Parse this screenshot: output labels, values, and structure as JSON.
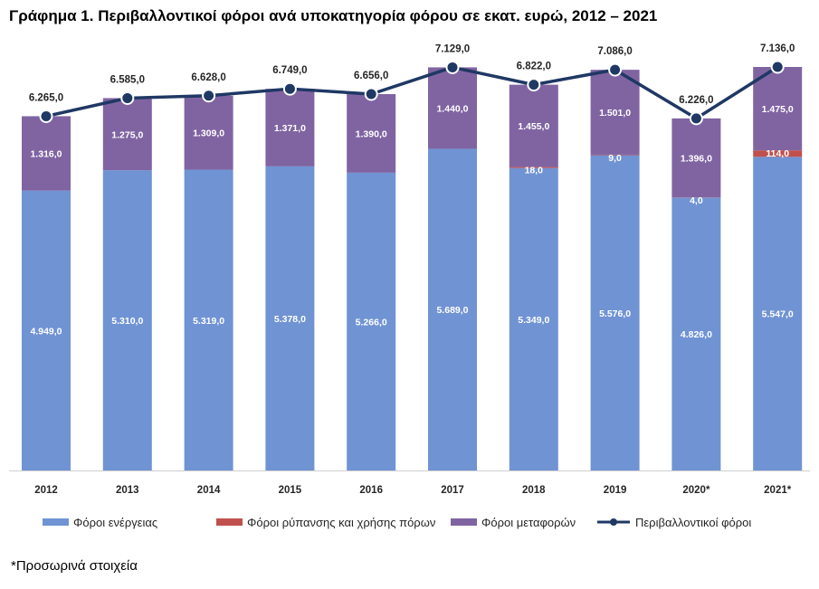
{
  "title": "Γράφημα 1. Περιβαλλοντικοί φόροι ανά υποκατηγορία φόρου σε εκατ. ευρώ, 2012 – 2021",
  "footnote": "*Προσωρινά στοιχεία",
  "chart_data": {
    "type": "bar",
    "stacked": true,
    "categories": [
      "2012",
      "2013",
      "2014",
      "2015",
      "2016",
      "2017",
      "2018",
      "2019",
      "2020*",
      "2021*"
    ],
    "series": [
      {
        "name": "Φόροι ενέργειας",
        "color": "#7093d3",
        "values": [
          4949,
          5310,
          5319,
          5378,
          5266,
          5689,
          5349,
          5576,
          4826,
          5547
        ],
        "labels": [
          "4.949,0",
          "5.310,0",
          "5.319,0",
          "5.378,0",
          "5.266,0",
          "5.689,0",
          "5.349,0",
          "5.576,0",
          "4.826,0",
          "5.547,0"
        ]
      },
      {
        "name": "Φόροι ρύπανσης και χρήσης πόρων",
        "color": "#c0504d",
        "values": [
          0,
          0,
          0,
          0,
          0,
          0,
          18,
          9,
          4,
          114
        ],
        "labels": [
          "",
          "",
          "",
          "",
          "",
          "",
          "18,0",
          "9,0",
          "4,0",
          "114,0"
        ]
      },
      {
        "name": "Φόροι μεταφορών",
        "color": "#8064a2",
        "values": [
          1316,
          1275,
          1309,
          1371,
          1390,
          1440,
          1455,
          1501,
          1396,
          1475
        ],
        "labels": [
          "1.316,0",
          "1.275,0",
          "1.309,0",
          "1.371,0",
          "1.390,0",
          "1.440,0",
          "1.455,0",
          "1.501,0",
          "1.396,0",
          "1.475,0"
        ]
      }
    ],
    "line": {
      "name": "Περιβαλλοντικοί φόροι",
      "type": "line",
      "color": "#1f3864",
      "values": [
        6265,
        6585,
        6628,
        6749,
        6656,
        7129,
        6822,
        7086,
        6226,
        7136
      ],
      "labels": [
        "6.265,0",
        "6.585,0",
        "6.628,0",
        "6.749,0",
        "6.656,0",
        "7.129,0",
        "6.822,0",
        "7.086,0",
        "6.226,0",
        "7.136,0"
      ]
    },
    "legend_position": "bottom",
    "grid": false
  }
}
